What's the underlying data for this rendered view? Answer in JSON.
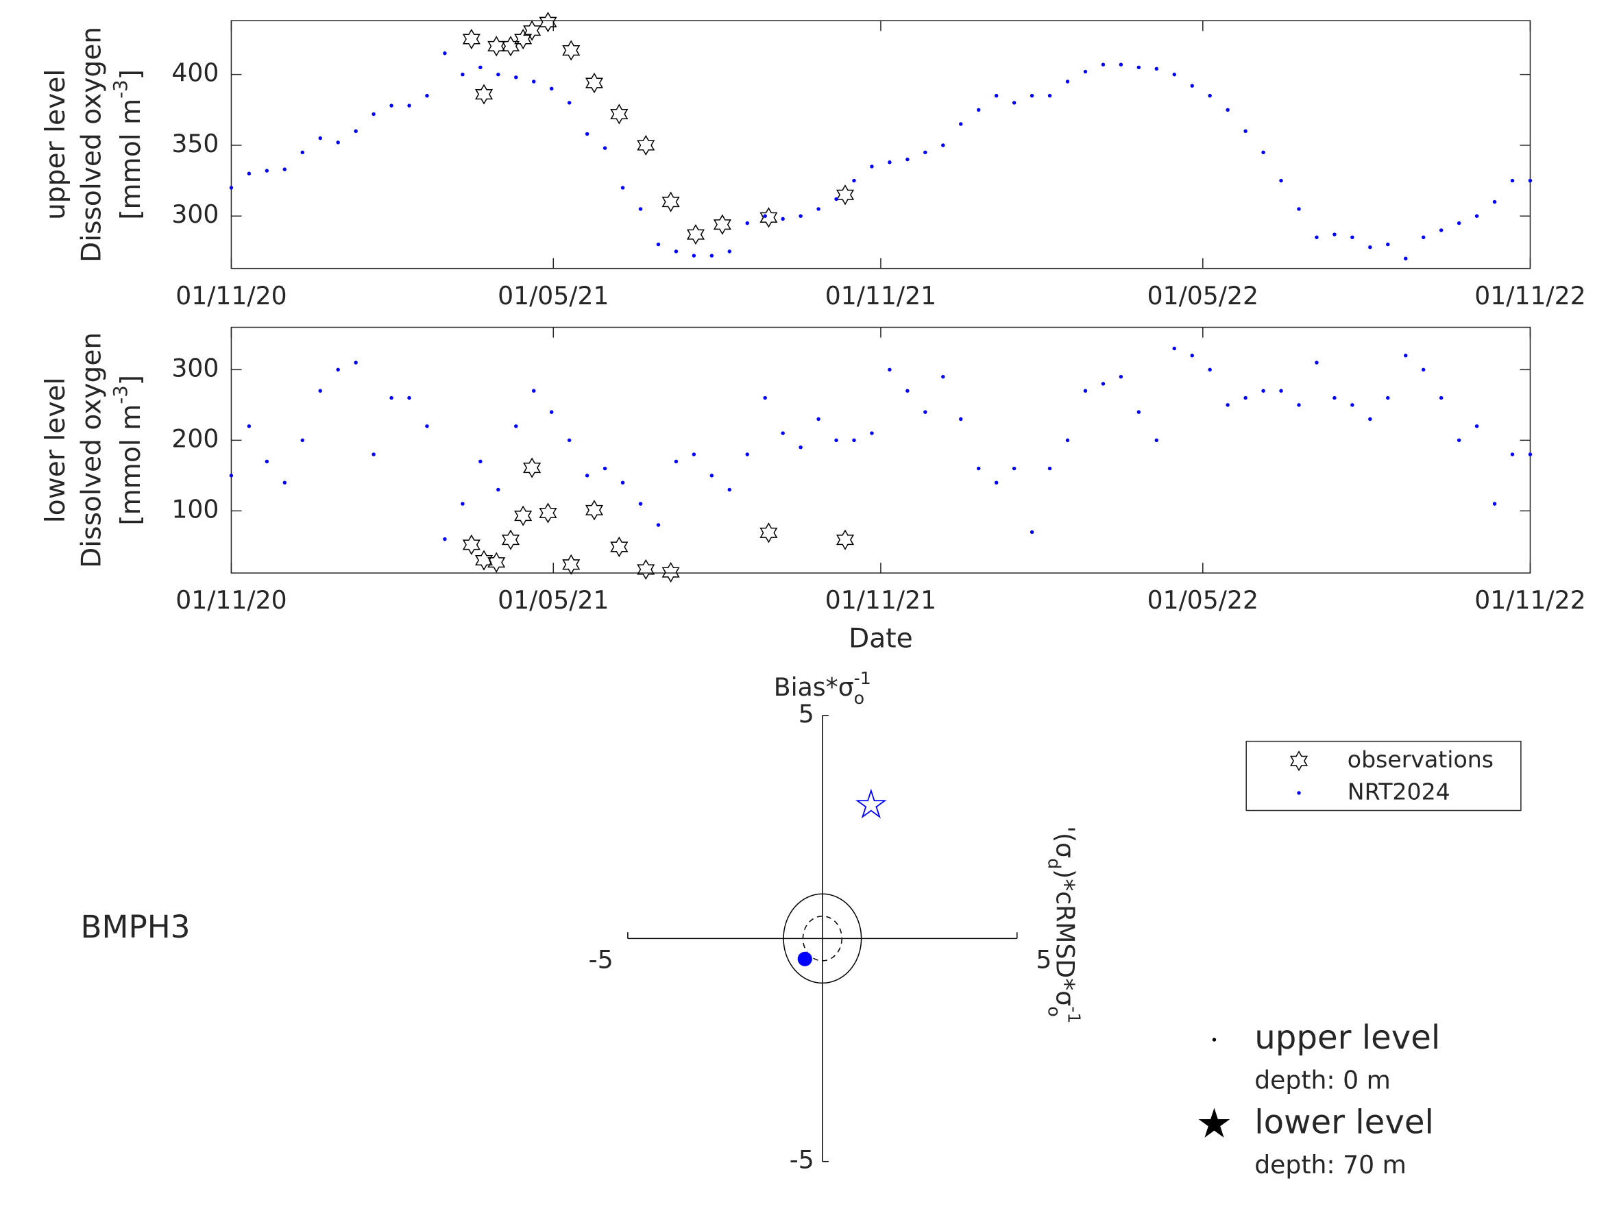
{
  "station": "BMPH3",
  "chart_data": [
    {
      "type": "scatter",
      "y_label": [
        [
          {
            "text": "upper level"
          }
        ],
        [
          {
            "text": "Dissolved oxygen"
          }
        ],
        [
          {
            "text": "[mmol m"
          },
          {
            "text": "-3",
            "script": "sup"
          },
          {
            "text": "]"
          }
        ]
      ],
      "xlim": [
        "2020-11-01",
        "2022-11-01"
      ],
      "xticks": [
        {
          "value": "2020-11-01",
          "label": "01/11/20"
        },
        {
          "value": "2021-05-01",
          "label": "01/05/21"
        },
        {
          "value": "2021-11-01",
          "label": "01/11/21"
        },
        {
          "value": "2022-05-01",
          "label": "01/05/22"
        },
        {
          "value": "2022-11-01",
          "label": "01/11/22"
        }
      ],
      "ylim": [
        263,
        438
      ],
      "yticks": [
        300,
        350,
        400
      ],
      "series": [
        {
          "name": "observations",
          "color": "#000000",
          "marker": "hexagram",
          "x": [
            "2021-03-16",
            "2021-03-23",
            "2021-03-30",
            "2021-04-07",
            "2021-04-14",
            "2021-04-19",
            "2021-04-28",
            "2021-05-11",
            "2021-05-24",
            "2021-06-07",
            "2021-06-22",
            "2021-07-06",
            "2021-07-20",
            "2021-08-04",
            "2021-08-30",
            "2021-10-12"
          ],
          "values": [
            425,
            386,
            420,
            420,
            425,
            431,
            437,
            417,
            394,
            372,
            350,
            310,
            287,
            294,
            299,
            315
          ]
        },
        {
          "name": "NRT2024",
          "color": "#0000ff",
          "marker": "dot",
          "x": [
            "2020-11-01",
            "2020-11-11",
            "2020-11-21",
            "2020-12-01",
            "2020-12-11",
            "2020-12-21",
            "2020-12-31",
            "2021-01-10",
            "2021-01-20",
            "2021-01-30",
            "2021-02-09",
            "2021-02-19",
            "2021-03-01",
            "2021-03-11",
            "2021-03-21",
            "2021-03-31",
            "2021-04-10",
            "2021-04-20",
            "2021-04-30",
            "2021-05-10",
            "2021-05-20",
            "2021-05-30",
            "2021-06-09",
            "2021-06-19",
            "2021-06-29",
            "2021-07-09",
            "2021-07-19",
            "2021-07-29",
            "2021-08-08",
            "2021-08-18",
            "2021-08-28",
            "2021-09-07",
            "2021-09-17",
            "2021-09-27",
            "2021-10-07",
            "2021-10-17",
            "2021-10-27",
            "2021-11-06",
            "2021-11-16",
            "2021-11-26",
            "2021-12-06",
            "2021-12-16",
            "2021-12-26",
            "2022-01-05",
            "2022-01-15",
            "2022-01-25",
            "2022-02-04",
            "2022-02-14",
            "2022-02-24",
            "2022-03-06",
            "2022-03-16",
            "2022-03-26",
            "2022-04-05",
            "2022-04-15",
            "2022-04-25",
            "2022-05-05",
            "2022-05-15",
            "2022-05-25",
            "2022-06-04",
            "2022-06-14",
            "2022-06-24",
            "2022-07-04",
            "2022-07-14",
            "2022-07-24",
            "2022-08-03",
            "2022-08-13",
            "2022-08-23",
            "2022-09-02",
            "2022-09-12",
            "2022-09-22",
            "2022-10-02",
            "2022-10-12",
            "2022-10-22",
            "2022-11-01"
          ],
          "values": [
            320,
            330,
            332,
            333,
            345,
            355,
            352,
            360,
            372,
            378,
            378,
            385,
            415,
            400,
            405,
            400,
            398,
            395,
            390,
            380,
            358,
            348,
            320,
            305,
            280,
            275,
            272,
            272,
            275,
            295,
            300,
            298,
            300,
            305,
            312,
            325,
            335,
            338,
            340,
            345,
            350,
            365,
            375,
            385,
            380,
            385,
            385,
            395,
            402,
            407,
            407,
            405,
            404,
            400,
            392,
            385,
            375,
            360,
            345,
            325,
            305,
            285,
            287,
            285,
            278,
            280,
            270,
            285,
            290,
            295,
            300,
            310,
            325,
            325
          ]
        }
      ]
    },
    {
      "type": "scatter",
      "y_label": [
        [
          {
            "text": "lower level"
          }
        ],
        [
          {
            "text": "Dissolved oxygen"
          }
        ],
        [
          {
            "text": "[mmol m"
          },
          {
            "text": "-3",
            "script": "sup"
          },
          {
            "text": "]"
          }
        ]
      ],
      "x_label": "Date",
      "xlim": [
        "2020-11-01",
        "2022-11-01"
      ],
      "xticks": [
        {
          "value": "2020-11-01",
          "label": "01/11/20"
        },
        {
          "value": "2021-05-01",
          "label": "01/05/21"
        },
        {
          "value": "2021-11-01",
          "label": "01/11/21"
        },
        {
          "value": "2022-05-01",
          "label": "01/05/22"
        },
        {
          "value": "2022-11-01",
          "label": "01/11/22"
        }
      ],
      "ylim": [
        12,
        360
      ],
      "yticks": [
        100,
        200,
        300
      ],
      "series": [
        {
          "color": "#000000",
          "marker": "hexagram",
          "x": [
            "2021-03-16",
            "2021-03-23",
            "2021-03-30",
            "2021-04-07",
            "2021-04-14",
            "2021-04-19",
            "2021-04-28",
            "2021-05-11",
            "2021-05-24",
            "2021-06-07",
            "2021-06-22",
            "2021-07-06",
            "2021-08-30",
            "2021-10-12"
          ],
          "values": [
            52,
            30,
            27,
            59,
            93,
            161,
            97,
            24,
            101,
            49,
            17,
            13,
            69,
            59
          ]
        },
        {
          "color": "#0000ff",
          "marker": "dot",
          "x": [
            "2020-11-01",
            "2020-11-11",
            "2020-11-21",
            "2020-12-01",
            "2020-12-11",
            "2020-12-21",
            "2020-12-31",
            "2021-01-10",
            "2021-01-20",
            "2021-01-30",
            "2021-02-09",
            "2021-02-19",
            "2021-03-01",
            "2021-03-11",
            "2021-03-21",
            "2021-03-31",
            "2021-04-10",
            "2021-04-20",
            "2021-04-30",
            "2021-05-10",
            "2021-05-20",
            "2021-05-30",
            "2021-06-09",
            "2021-06-19",
            "2021-06-29",
            "2021-07-09",
            "2021-07-19",
            "2021-07-29",
            "2021-08-08",
            "2021-08-18",
            "2021-08-28",
            "2021-09-07",
            "2021-09-17",
            "2021-09-27",
            "2021-10-07",
            "2021-10-17",
            "2021-10-27",
            "2021-11-06",
            "2021-11-16",
            "2021-11-26",
            "2021-12-06",
            "2021-12-16",
            "2021-12-26",
            "2022-01-05",
            "2022-01-15",
            "2022-01-25",
            "2022-02-04",
            "2022-02-14",
            "2022-02-24",
            "2022-03-06",
            "2022-03-16",
            "2022-03-26",
            "2022-04-05",
            "2022-04-15",
            "2022-04-25",
            "2022-05-05",
            "2022-05-15",
            "2022-05-25",
            "2022-06-04",
            "2022-06-14",
            "2022-06-24",
            "2022-07-04",
            "2022-07-14",
            "2022-07-24",
            "2022-08-03",
            "2022-08-13",
            "2022-08-23",
            "2022-09-02",
            "2022-09-12",
            "2022-09-22",
            "2022-10-02",
            "2022-10-12",
            "2022-10-22",
            "2022-11-01"
          ],
          "values": [
            150,
            220,
            170,
            140,
            200,
            270,
            300,
            310,
            180,
            260,
            260,
            220,
            60,
            110,
            170,
            130,
            220,
            270,
            240,
            200,
            150,
            160,
            140,
            110,
            80,
            170,
            180,
            150,
            130,
            180,
            260,
            210,
            190,
            230,
            200,
            200,
            210,
            300,
            270,
            240,
            290,
            230,
            160,
            140,
            160,
            70,
            160,
            200,
            270,
            280,
            290,
            240,
            200,
            330,
            320,
            300,
            250,
            260,
            270,
            270,
            250,
            310,
            260,
            250,
            230,
            260,
            320,
            300,
            260,
            200,
            220,
            110,
            180,
            180
          ]
        }
      ]
    },
    {
      "type": "target",
      "x_label": [
        {
          "text": "'(σ"
        },
        {
          "text": "d",
          "script": "sub"
        },
        {
          "text": ")*cRMSD*σ"
        },
        {
          "text": "o",
          "script": "sub"
        },
        {
          "text": "-1",
          "script": "sup"
        }
      ],
      "y_label": [
        {
          "text": "Bias*σ"
        },
        {
          "text": "o",
          "script": "sub"
        },
        {
          "text": "-1",
          "script": "sup"
        }
      ],
      "xlim": [
        -5,
        5
      ],
      "ylim": [
        -5,
        5
      ],
      "xticks": [
        -5,
        5
      ],
      "yticks": [
        -5,
        5
      ],
      "circles": [
        1,
        0.5
      ],
      "series": [
        {
          "name": "upper level",
          "depth": "depth: 0 m",
          "color": "#0000ff",
          "marker": "dot",
          "x": [
            -0.45
          ],
          "values": [
            -0.46
          ]
        },
        {
          "name": "lower level",
          "depth": "depth: 70 m",
          "color": "#0000ff",
          "marker": "pentagram",
          "x": [
            1.25
          ],
          "values": [
            2.99
          ]
        }
      ]
    }
  ]
}
